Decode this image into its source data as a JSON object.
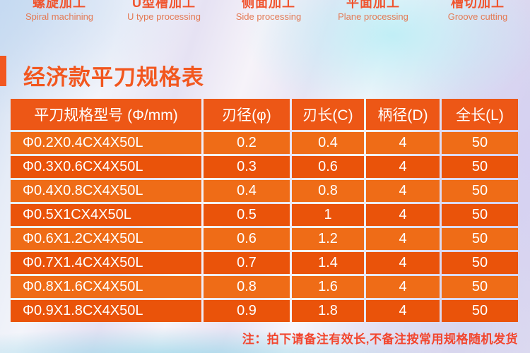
{
  "nav": {
    "items": [
      {
        "zh": "螺旋加工",
        "en": "Spiral machining"
      },
      {
        "zh": "U型槽加工",
        "en": "U type processing"
      },
      {
        "zh": "侧面加工",
        "en": "Side processing"
      },
      {
        "zh": "平面加工",
        "en": "Plane processing"
      },
      {
        "zh": "槽切加工",
        "en": "Groove cutting"
      }
    ]
  },
  "section": {
    "title": "经济款平刀规格表"
  },
  "table": {
    "headers": [
      "平刀规格型号 (Φ/mm)",
      "刃径(φ)",
      "刃长(C)",
      "柄径(D)",
      "全长(L)"
    ],
    "rows": [
      [
        "Φ0.2X0.4CX4X50L",
        "0.2",
        "0.4",
        "4",
        "50"
      ],
      [
        "Φ0.3X0.6CX4X50L",
        "0.3",
        "0.6",
        "4",
        "50"
      ],
      [
        "Φ0.4X0.8CX4X50L",
        "0.4",
        "0.8",
        "4",
        "50"
      ],
      [
        "Φ0.5X1CX4X50L",
        "0.5",
        "1",
        "4",
        "50"
      ],
      [
        "Φ0.6X1.2CX4X50L",
        "0.6",
        "1.2",
        "4",
        "50"
      ],
      [
        "Φ0.7X1.4CX4X50L",
        "0.7",
        "1.4",
        "4",
        "50"
      ],
      [
        "Φ0.8X1.6CX4X50L",
        "0.8",
        "1.6",
        "4",
        "50"
      ],
      [
        "Φ0.9X1.8CX4X50L",
        "0.9",
        "1.8",
        "4",
        "50"
      ]
    ]
  },
  "note": "注：拍下请备注有效长,不备注按常用规格随机发货",
  "colors": {
    "accent_orange": "#f2571f",
    "nav_zh_text": "#f0542e",
    "nav_en_text": "#e47a55",
    "table_header_bg": "#ed5716",
    "row_light_bg": "#ef6c17",
    "row_dark_bg": "#ea530a",
    "table_text": "#ffffff",
    "note_text": "#f2462e"
  }
}
